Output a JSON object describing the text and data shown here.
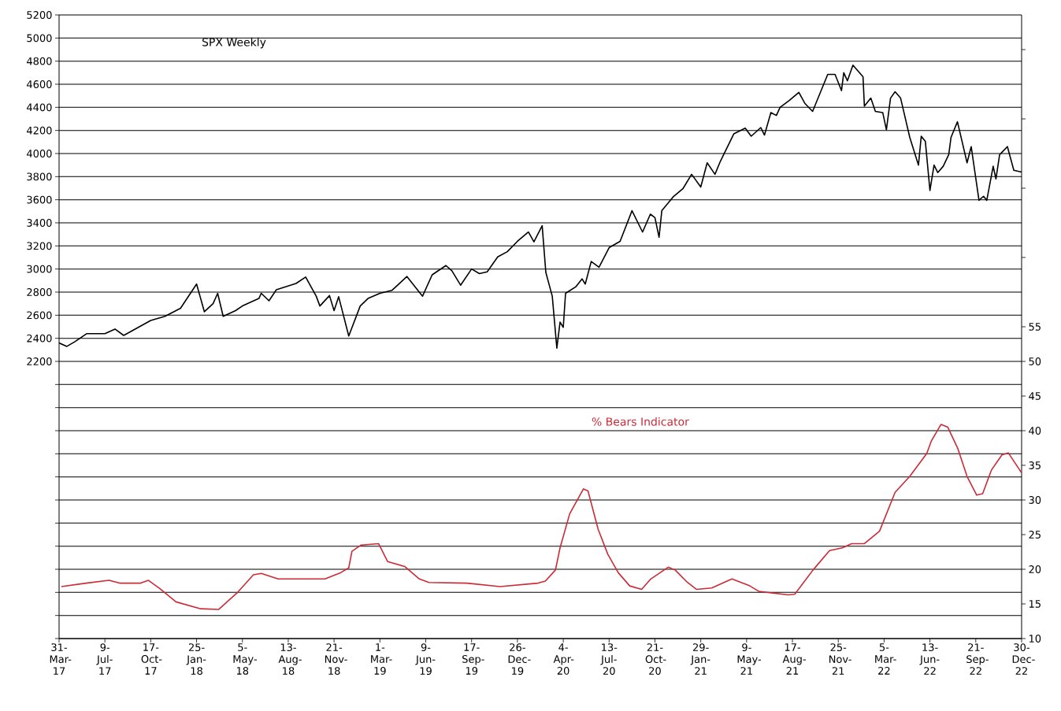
{
  "chart_data": {
    "type": "line",
    "legend": false,
    "grid": "y",
    "marker": "none",
    "line_style": "solid",
    "xlim": [
      "2017-03-31",
      "2022-12-30"
    ],
    "xticks": [
      {
        "value": "2017-03-31",
        "label": "31-Mar-17"
      },
      {
        "value": "2017-07-09",
        "label": "9-Jul-17"
      },
      {
        "value": "2017-10-17",
        "label": "17-Oct-17"
      },
      {
        "value": "2018-01-25",
        "label": "25-Jan-18"
      },
      {
        "value": "2018-05-05",
        "label": "5-May-18"
      },
      {
        "value": "2018-08-13",
        "label": "13-Aug-18"
      },
      {
        "value": "2018-11-21",
        "label": "21-Nov-18"
      },
      {
        "value": "2019-03-01",
        "label": "1-Mar-19"
      },
      {
        "value": "2019-06-09",
        "label": "9-Jun-19"
      },
      {
        "value": "2019-09-17",
        "label": "17-Sep-19"
      },
      {
        "value": "2019-12-26",
        "label": "26-Dec-19"
      },
      {
        "value": "2020-04-04",
        "label": "4-Apr-20"
      },
      {
        "value": "2020-07-13",
        "label": "13-Jul-20"
      },
      {
        "value": "2020-10-21",
        "label": "21-Oct-20"
      },
      {
        "value": "2021-01-29",
        "label": "29-Jan-21"
      },
      {
        "value": "2021-05-09",
        "label": "9-May-21"
      },
      {
        "value": "2021-08-17",
        "label": "17-Aug-21"
      },
      {
        "value": "2021-11-25",
        "label": "25-Nov-21"
      },
      {
        "value": "2022-03-05",
        "label": "5-Mar-22"
      },
      {
        "value": "2022-06-13",
        "label": "13-Jun-22"
      },
      {
        "value": "2022-09-21",
        "label": "21-Sep-22"
      },
      {
        "value": "2022-12-30",
        "label": "30-Dec-22"
      }
    ],
    "ylim": [
      -200,
      5200
    ],
    "yticks": [
      {
        "value": -200,
        "label": null
      },
      {
        "value": 0,
        "label": null
      },
      {
        "value": 200,
        "label": null
      },
      {
        "value": 400,
        "label": null
      },
      {
        "value": 600,
        "label": null
      },
      {
        "value": 800,
        "label": null
      },
      {
        "value": 1000,
        "label": null
      },
      {
        "value": 1200,
        "label": null
      },
      {
        "value": 1400,
        "label": null
      },
      {
        "value": 1600,
        "label": null
      },
      {
        "value": 1800,
        "label": null
      },
      {
        "value": 2000,
        "label": null
      },
      2200,
      2400,
      2600,
      2800,
      3000,
      3200,
      3400,
      3600,
      3800,
      4000,
      4200,
      4400,
      4600,
      4800,
      5000,
      5200
    ],
    "y2lim": [
      10,
      100
    ],
    "y2ticks": [
      10,
      15,
      20,
      25,
      30,
      35,
      40,
      45,
      50,
      55,
      {
        "value": 65,
        "label": null
      },
      {
        "value": 75,
        "label": null
      },
      {
        "value": 85,
        "label": null
      },
      {
        "value": 95,
        "label": null
      }
    ],
    "series": [
      {
        "name": "SPX Weekly",
        "color": "#000000",
        "axis": "y",
        "x": [
          "2017-03-31",
          "2017-04-17",
          "2017-05-04",
          "2017-05-30",
          "2017-07-09",
          "2017-07-31",
          "2017-08-19",
          "2017-10-17",
          "2017-11-17",
          "2017-12-21",
          "2018-01-25",
          "2018-02-11",
          "2018-03-02",
          "2018-03-12",
          "2018-03-24",
          "2018-04-20",
          "2018-05-05",
          "2018-06-10",
          "2018-06-15",
          "2018-07-02",
          "2018-07-18",
          "2018-08-30",
          "2018-09-20",
          "2018-10-13",
          "2018-10-21",
          "2018-11-11",
          "2018-11-21",
          "2018-12-01",
          "2018-12-23",
          "2019-01-17",
          "2019-02-03",
          "2019-03-01",
          "2019-03-27",
          "2019-04-29",
          "2019-06-02",
          "2019-06-23",
          "2019-07-23",
          "2019-08-05",
          "2019-08-24",
          "2019-09-17",
          "2019-10-04",
          "2019-10-21",
          "2019-11-13",
          "2019-12-04",
          "2019-12-26",
          "2020-01-19",
          "2020-01-31",
          "2020-02-18",
          "2020-02-26",
          "2020-03-11",
          "2020-03-21",
          "2020-03-28",
          "2020-04-04",
          "2020-04-09",
          "2020-05-01",
          "2020-05-15",
          "2020-05-22",
          "2020-06-04",
          "2020-06-21",
          "2020-07-13",
          "2020-08-06",
          "2020-09-01",
          "2020-09-24",
          "2020-10-11",
          "2020-10-21",
          "2020-10-30",
          "2020-11-05",
          "2020-12-01",
          "2020-12-21",
          "2021-01-09",
          "2021-01-29",
          "2021-02-12",
          "2021-03-01",
          "2021-03-13",
          "2021-04-11",
          "2021-05-06",
          "2021-05-19",
          "2021-06-09",
          "2021-06-17",
          "2021-07-01",
          "2021-07-13",
          "2021-07-21",
          "2021-08-10",
          "2021-08-31",
          "2021-09-13",
          "2021-09-30",
          "2021-11-02",
          "2021-11-18",
          "2021-12-02",
          "2021-12-07",
          "2021-12-15",
          "2021-12-27",
          "2022-01-18",
          "2022-01-21",
          "2022-02-04",
          "2022-02-14",
          "2022-03-02",
          "2022-03-10",
          "2022-03-19",
          "2022-03-29",
          "2022-04-10",
          "2022-04-30",
          "2022-05-19",
          "2022-05-25",
          "2022-06-03",
          "2022-06-13",
          "2022-06-22",
          "2022-06-30",
          "2022-07-12",
          "2022-07-24",
          "2022-07-29",
          "2022-08-12",
          "2022-09-02",
          "2022-09-11",
          "2022-09-28",
          "2022-10-08",
          "2022-10-15",
          "2022-10-29",
          "2022-11-04",
          "2022-11-12",
          "2022-11-29",
          "2022-12-13",
          "2022-12-30"
        ],
        "values": [
          2360,
          2330,
          2370,
          2440,
          2440,
          2480,
          2425,
          2555,
          2590,
          2660,
          2870,
          2630,
          2700,
          2790,
          2590,
          2640,
          2680,
          2745,
          2790,
          2725,
          2820,
          2875,
          2930,
          2765,
          2680,
          2770,
          2640,
          2760,
          2420,
          2680,
          2745,
          2790,
          2815,
          2935,
          2765,
          2950,
          3030,
          2985,
          2860,
          3000,
          2960,
          2975,
          3105,
          3150,
          3240,
          3320,
          3235,
          3375,
          2970,
          2765,
          2315,
          2540,
          2495,
          2790,
          2845,
          2915,
          2870,
          3065,
          3015,
          3185,
          3240,
          3505,
          3320,
          3475,
          3445,
          3275,
          3505,
          3630,
          3695,
          3820,
          3710,
          3920,
          3820,
          3935,
          4170,
          4220,
          4150,
          4225,
          4160,
          4355,
          4330,
          4400,
          4460,
          4530,
          4435,
          4365,
          4685,
          4685,
          4545,
          4700,
          4630,
          4765,
          4665,
          4410,
          4480,
          4365,
          4355,
          4205,
          4480,
          4535,
          4480,
          4140,
          3900,
          4150,
          4105,
          3680,
          3900,
          3835,
          3890,
          3990,
          4140,
          4275,
          3920,
          4060,
          3595,
          3630,
          3595,
          3890,
          3780,
          3990,
          4060,
          3855,
          3840
        ]
      },
      {
        "name": "% Bears Indicator",
        "color": "#cc2a36",
        "axis": "y2",
        "x": [
          "2017-04-05",
          "2017-05-29",
          "2017-07-18",
          "2017-08-10",
          "2017-09-25",
          "2017-10-12",
          "2017-11-06",
          "2017-12-11",
          "2018-02-03",
          "2018-03-14",
          "2018-04-25",
          "2018-05-29",
          "2018-06-15",
          "2018-07-22",
          "2018-11-01",
          "2018-12-05",
          "2018-12-23",
          "2018-12-30",
          "2019-01-19",
          "2019-02-26",
          "2019-03-18",
          "2019-04-24",
          "2019-05-26",
          "2019-06-16",
          "2019-09-07",
          "2019-11-18",
          "2020-02-09",
          "2020-02-25",
          "2020-03-18",
          "2020-03-28",
          "2020-04-18",
          "2020-05-18",
          "2020-05-28",
          "2020-06-19",
          "2020-07-10",
          "2020-08-02",
          "2020-08-27",
          "2020-09-22",
          "2020-10-12",
          "2020-11-19",
          "2020-12-04",
          "2020-12-31",
          "2021-01-20",
          "2021-02-22",
          "2021-04-07",
          "2021-05-16",
          "2021-06-05",
          "2021-08-08",
          "2021-08-22",
          "2021-10-01",
          "2021-11-06",
          "2021-12-04",
          "2021-12-24",
          "2022-01-21",
          "2022-02-23",
          "2022-03-29",
          "2022-04-30",
          "2022-06-06",
          "2022-06-16",
          "2022-07-07",
          "2022-07-22",
          "2022-08-13",
          "2022-09-02",
          "2022-09-23",
          "2022-10-06",
          "2022-10-25",
          "2022-11-17",
          "2022-12-01",
          "2022-12-30"
        ],
        "values": [
          17.5,
          18.0,
          18.4,
          18.0,
          18.0,
          18.4,
          17.2,
          15.3,
          14.3,
          14.2,
          16.7,
          19.2,
          19.4,
          18.6,
          18.6,
          19.5,
          20.2,
          22.6,
          23.5,
          23.7,
          21.1,
          20.4,
          18.6,
          18.1,
          18.0,
          17.5,
          18.0,
          18.3,
          19.9,
          23.1,
          28.0,
          31.6,
          31.3,
          25.8,
          22.2,
          19.5,
          17.6,
          17.1,
          18.6,
          20.3,
          19.9,
          18.1,
          17.1,
          17.3,
          18.6,
          17.6,
          16.8,
          16.3,
          16.4,
          19.9,
          22.7,
          23.1,
          23.7,
          23.7,
          25.5,
          31.1,
          33.4,
          36.7,
          38.5,
          40.9,
          40.5,
          37.4,
          33.4,
          30.7,
          30.9,
          34.3,
          36.5,
          36.8,
          33.9
        ]
      }
    ]
  }
}
